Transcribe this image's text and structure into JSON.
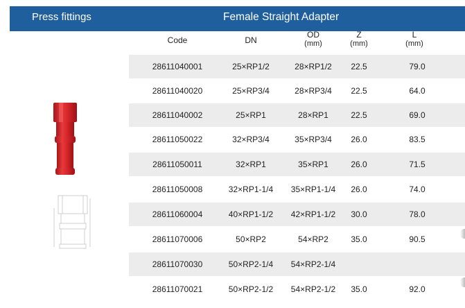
{
  "header": {
    "category": "Press fittings",
    "title": "Female Straight Adapter",
    "color": "#1f5f9e"
  },
  "columns": {
    "code": "Code",
    "dn": "DN",
    "od": "OD",
    "od_unit": "(mm)",
    "z": "Z",
    "z_unit": "(mm)",
    "l": "L",
    "l_unit": "(mm)"
  },
  "rows": [
    {
      "code": "28611040001",
      "dn": "25×RP1/2",
      "od": "28×RP1/2",
      "z": "22.5",
      "l": "79.0"
    },
    {
      "code": "28611040020",
      "dn": "25×RP3/4",
      "od": "28×RP3/4",
      "z": "22.5",
      "l": "64.0"
    },
    {
      "code": "28611040002",
      "dn": "25×RP1",
      "od": "28×RP1",
      "z": "22.5",
      "l": "69.0"
    },
    {
      "code": "28611050022",
      "dn": "32×RP3/4",
      "od": "35×RP3/4",
      "z": "26.0",
      "l": "83.5"
    },
    {
      "code": "28611050011",
      "dn": "32×RP1",
      "od": "35×RP1",
      "z": "26.0",
      "l": "71.5"
    },
    {
      "code": "28611050008",
      "dn": "32×RP1-1/4",
      "od": "35×RP1-1/4",
      "z": "26.0",
      "l": "74.0"
    },
    {
      "code": "28611060004",
      "dn": "40×RP1-1/2",
      "od": "42×RP1-1/2",
      "z": "30.0",
      "l": "78.0"
    },
    {
      "code": "28611070006",
      "dn": "50×RP2",
      "od": "54×RP2",
      "z": "35.0",
      "l": "90.5"
    },
    {
      "code": "28611070030",
      "dn": "50×RP2-1/4",
      "od": "54×RP2-1/4",
      "z": "",
      "l": ""
    },
    {
      "code": "28611070021",
      "dn": "50×RP2-1/2",
      "od": "54×RP2-1/2",
      "z": "35.0",
      "l": "92.0"
    }
  ],
  "images": {
    "product_photo_icon": "red-adapter-fitting-photo",
    "drawing_icon": "adapter-line-drawing"
  },
  "colors": {
    "row_shade": "#ececec",
    "fitting_red": "#d8262a"
  }
}
